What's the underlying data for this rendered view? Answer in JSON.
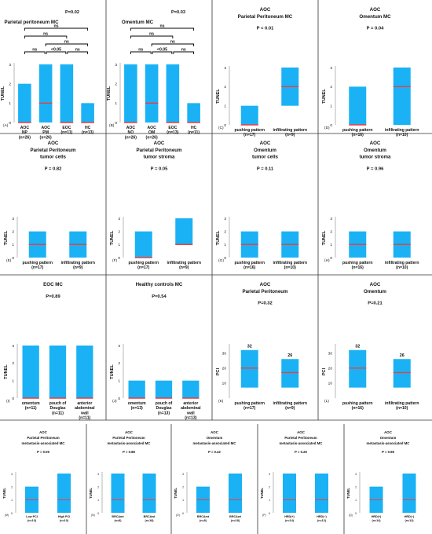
{
  "colors": {
    "bar": "#1ab2f5",
    "median": "#f03c3c",
    "grid": "#000000"
  },
  "chart_data": [
    {
      "id": "A",
      "panel": "(A)",
      "type": "bar",
      "title": "Parietal peritoneum MC",
      "p": "P=0.02",
      "ylabel": "TUNEL",
      "ylim": [
        0,
        3
      ],
      "yticks": [
        "0",
        "1",
        "2",
        "3"
      ],
      "categories": [
        [
          "AOC",
          "NP",
          "(n=26)"
        ],
        [
          "AOC",
          "PM",
          "(n=26)"
        ],
        [
          "EOC",
          "(n=11)"
        ],
        [
          "HC",
          "(n=13)"
        ]
      ],
      "ranges": [
        [
          0,
          2
        ],
        [
          0,
          3
        ],
        [
          0,
          3
        ],
        [
          0,
          1
        ]
      ],
      "medians": [
        0,
        1,
        0,
        0
      ],
      "brackets": [
        {
          "from": 0,
          "to": 3,
          "label": "ns"
        },
        {
          "from": 0,
          "to": 2,
          "label": "ns"
        },
        {
          "from": 1,
          "to": 3,
          "label": "ns"
        },
        {
          "from": 0,
          "to": 1,
          "label": "ns"
        },
        {
          "from": 1,
          "to": 2,
          "label": "<0.05"
        },
        {
          "from": 2,
          "to": 3,
          "label": "ns"
        }
      ]
    },
    {
      "id": "B",
      "panel": "(B)",
      "type": "bar",
      "title": "Omentum MC",
      "p": "P=0.03",
      "ylabel": "TUNEL",
      "ylim": [
        0,
        3
      ],
      "yticks": [
        "0",
        "1",
        "2",
        "3"
      ],
      "categories": [
        [
          "AOC",
          "NO",
          "(n=26)"
        ],
        [
          "AOC",
          "OM",
          "(n=26)"
        ],
        [
          "EOC",
          "(n=13)"
        ],
        [
          "HC",
          "(n=11)"
        ]
      ],
      "ranges": [
        [
          0,
          3
        ],
        [
          0,
          3
        ],
        [
          0,
          3
        ],
        [
          0,
          1
        ]
      ],
      "medians": [
        0,
        1,
        0,
        0
      ],
      "brackets": [
        {
          "from": 0,
          "to": 3,
          "label": "ns"
        },
        {
          "from": 0,
          "to": 2,
          "label": "ns"
        },
        {
          "from": 1,
          "to": 3,
          "label": "ns"
        },
        {
          "from": 0,
          "to": 1,
          "label": "ns"
        },
        {
          "from": 1,
          "to": 2,
          "label": "<0.05"
        },
        {
          "from": 2,
          "to": 3,
          "label": "ns"
        }
      ]
    },
    {
      "id": "C",
      "panel": "(C)",
      "type": "bar",
      "title": [
        "AOC",
        "Parietal Peritoneum MC"
      ],
      "p": "P < 0.01",
      "ylabel": "TUNEL",
      "ylim": [
        0,
        3
      ],
      "yticks": [
        "0",
        "1",
        "2",
        "3"
      ],
      "categories": [
        [
          "pushing pattern",
          "(n=17)"
        ],
        [
          "infiltrating pattern",
          "(n=9)"
        ]
      ],
      "ranges": [
        [
          0,
          1
        ],
        [
          1,
          3
        ]
      ],
      "medians": [
        0,
        2
      ]
    },
    {
      "id": "D",
      "panel": "(D)",
      "type": "bar",
      "title": [
        "AOC",
        "Omentum MC"
      ],
      "p": "P = 0.04",
      "ylabel": "TUNEL",
      "ylim": [
        0,
        3
      ],
      "yticks": [
        "0",
        "1",
        "2",
        "3"
      ],
      "categories": [
        [
          "pushing pattern",
          "(n=16)"
        ],
        [
          "infiltrating pattern",
          "(n=10)"
        ]
      ],
      "ranges": [
        [
          0,
          2
        ],
        [
          0,
          3
        ]
      ],
      "medians": [
        0,
        2
      ]
    },
    {
      "id": "E",
      "panel": "(E)",
      "type": "bar",
      "title": [
        "AOC",
        "Parietal Peritoneum",
        "tumor cells"
      ],
      "p": "P = 0.82",
      "ylabel": "TUNEL",
      "ylim": [
        0,
        3
      ],
      "yticks": [
        "0",
        "1",
        "2",
        "3"
      ],
      "categories": [
        [
          "pushing pattern",
          "(n=17)"
        ],
        [
          "infiltrating pattern",
          "(n=9)"
        ]
      ],
      "ranges": [
        [
          0,
          2
        ],
        [
          0,
          2
        ]
      ],
      "medians": [
        1,
        1
      ]
    },
    {
      "id": "F",
      "panel": "(F)",
      "type": "bar",
      "title": [
        "AOC",
        "Parietal Peritoneum",
        "tumor stroma"
      ],
      "p": "P = 0.05",
      "ylabel": "TUNEL",
      "ylim": [
        0,
        3
      ],
      "yticks": [
        "0",
        "1",
        "2",
        "3"
      ],
      "categories": [
        [
          "pushing pattern",
          "(n=17)"
        ],
        [
          "infiltrating pattern",
          "(n=9)"
        ]
      ],
      "ranges": [
        [
          0,
          2
        ],
        [
          1,
          3
        ]
      ],
      "medians": [
        0,
        1
      ]
    },
    {
      "id": "G",
      "panel": "(G)",
      "type": "bar",
      "title": [
        "AOC",
        "Omentum",
        "tumor cells"
      ],
      "p": "P = 0.11",
      "ylabel": "TUNEL",
      "ylim": [
        0,
        3
      ],
      "yticks": [
        "0",
        "1",
        "2",
        "3"
      ],
      "categories": [
        [
          "pushing pattern",
          "(n=16)"
        ],
        [
          "infiltrating pattern",
          "(n=10)"
        ]
      ],
      "ranges": [
        [
          0,
          2
        ],
        [
          0,
          2
        ]
      ],
      "medians": [
        1,
        1
      ]
    },
    {
      "id": "H",
      "panel": "(H)",
      "type": "bar",
      "title": [
        "AOC",
        "Omentum",
        "tumor stroma"
      ],
      "p": "P = 0.96",
      "ylabel": "TUNEL",
      "ylim": [
        0,
        3
      ],
      "yticks": [
        "0",
        "1",
        "2",
        "3"
      ],
      "categories": [
        [
          "pushing pattern",
          "(n=16)"
        ],
        [
          "infiltrating pattern",
          "(n=10)"
        ]
      ],
      "ranges": [
        [
          0,
          2
        ],
        [
          0,
          2
        ]
      ],
      "medians": [
        1,
        1
      ]
    },
    {
      "id": "I",
      "panel": "(I)",
      "type": "bar",
      "title": [
        "EOC MC"
      ],
      "p": "P=0.89",
      "ylabel": "TUNEL",
      "ylim": [
        0,
        3
      ],
      "yticks": [
        "0",
        "1",
        "2",
        "3"
      ],
      "categories": [
        [
          "omentum",
          "(n=11)"
        ],
        [
          "pouch of",
          "Douglas",
          "(n=11)"
        ],
        [
          "anterior",
          "abdominal",
          "wall",
          "(n=11)"
        ]
      ],
      "ranges": [
        [
          0,
          3
        ],
        [
          0,
          3
        ],
        [
          0,
          3
        ]
      ],
      "medians": [
        0,
        0,
        0
      ]
    },
    {
      "id": "J",
      "panel": "(J)",
      "type": "bar",
      "title": [
        "Healthy controls MC"
      ],
      "p": "P=0.54",
      "ylabel": "TUNEL",
      "ylim": [
        0,
        3
      ],
      "yticks": [
        "0",
        "1",
        "2",
        "3"
      ],
      "categories": [
        [
          "omentum",
          "(n=13)"
        ],
        [
          "pouch of",
          "Douglas",
          "(n=13)"
        ],
        [
          "anterior",
          "abdominal",
          "wall",
          "(n=13)"
        ]
      ],
      "ranges": [
        [
          0,
          1
        ],
        [
          0,
          1
        ],
        [
          0,
          1
        ]
      ],
      "medians": [
        0,
        0,
        0
      ]
    },
    {
      "id": "K",
      "panel": "(K)",
      "type": "bar",
      "title": [
        "AOC",
        "Parietal Peritoneum"
      ],
      "p": "P=0.32",
      "ylabel": "PCI",
      "ylim": [
        0,
        35
      ],
      "yticks": [
        "10",
        "20",
        "30"
      ],
      "categories": [
        [
          "pushing pattern",
          "(n=17)"
        ],
        [
          "infiltrating pattern",
          "(n=9)"
        ]
      ],
      "ranges": [
        [
          7,
          32
        ],
        [
          7,
          26
        ]
      ],
      "medians": [
        20,
        17
      ],
      "tops": [
        "32",
        "26"
      ]
    },
    {
      "id": "L",
      "panel": "(L)",
      "type": "bar",
      "title": [
        "AOC",
        "Omentum"
      ],
      "p": "P=0.21",
      "ylabel": "PCI",
      "ylim": [
        0,
        35
      ],
      "yticks": [
        "10",
        "20",
        "30"
      ],
      "categories": [
        [
          "pushing pattern",
          "(n=16)"
        ],
        [
          "infiltrating pattern",
          "(n=10)"
        ]
      ],
      "ranges": [
        [
          7,
          32
        ],
        [
          7,
          26
        ]
      ],
      "medians": [
        20,
        17
      ],
      "tops": [
        "32",
        "26"
      ]
    },
    {
      "id": "M",
      "panel": "(M)",
      "type": "bar",
      "title": [
        "AOC",
        "Parietal Peritoneum",
        "metastasis-associated MC"
      ],
      "p": "P = 0.09",
      "ylabel": "TUNEL",
      "ylim": [
        0,
        3
      ],
      "yticks": [
        "0",
        "1",
        "2",
        "3"
      ],
      "categories": [
        [
          "Low PCI",
          "(n=13)"
        ],
        [
          "High PCI",
          "(n=13)"
        ]
      ],
      "ranges": [
        [
          0,
          2
        ],
        [
          0,
          3
        ]
      ],
      "medians": [
        1,
        1
      ]
    },
    {
      "id": "N",
      "panel": "(N)",
      "type": "bar",
      "title": [
        "AOC",
        "Parietal Peritoneum",
        "metastasis-associated MC"
      ],
      "p": "P = 0.88",
      "ylabel": "TUNEL",
      "ylim": [
        0,
        3
      ],
      "yticks": [
        "0",
        "1",
        "2",
        "3"
      ],
      "categories": [
        [
          "BRCAmt",
          "(n=8)"
        ],
        [
          "BRCAwt",
          "(n=18)"
        ]
      ],
      "ranges": [
        [
          0,
          3
        ],
        [
          0,
          3
        ]
      ],
      "medians": [
        1,
        1
      ]
    },
    {
      "id": "O",
      "panel": "(O)",
      "type": "bar",
      "title": [
        "AOC",
        "Omentum",
        "metastasis-associated MC"
      ],
      "p": "P = 0.42",
      "ylabel": "TUNEL",
      "ylim": [
        0,
        3
      ],
      "yticks": [
        "0",
        "1",
        "2",
        "3"
      ],
      "categories": [
        [
          "BRCAmt",
          "(n=8)"
        ],
        [
          "BRCAwt",
          "(n=18)"
        ]
      ],
      "ranges": [
        [
          0,
          2
        ],
        [
          0,
          3
        ]
      ],
      "medians": [
        1,
        1
      ]
    },
    {
      "id": "P",
      "panel": "(P)",
      "type": "bar",
      "title": [
        "AOC",
        "Parietal Peritoneum",
        "metastasis-associated MC"
      ],
      "p": "P = 0.25",
      "ylabel": "TUNEL",
      "ylim": [
        0,
        3
      ],
      "yticks": [
        "0",
        "1",
        "2",
        "3"
      ],
      "categories": [
        [
          "HRD(+)",
          "(n=14)"
        ],
        [
          "HRD(−)",
          "(n=12)"
        ]
      ],
      "ranges": [
        [
          0,
          3
        ],
        [
          0,
          3
        ]
      ],
      "medians": [
        1,
        1
      ]
    },
    {
      "id": "Q",
      "panel": "(Q)",
      "type": "bar",
      "title": [
        "AOC",
        "Omentum",
        "metastasis-associated MC"
      ],
      "p": "P = 0.98",
      "ylabel": "TUNEL",
      "ylim": [
        0,
        3
      ],
      "yticks": [
        "0",
        "1",
        "2",
        "3"
      ],
      "categories": [
        [
          "HRD(+)",
          "(n=14)"
        ],
        [
          "HRD(−)",
          "(n=12)"
        ]
      ],
      "ranges": [
        [
          0,
          2
        ],
        [
          0,
          3
        ]
      ],
      "medians": [
        1,
        1
      ]
    }
  ]
}
